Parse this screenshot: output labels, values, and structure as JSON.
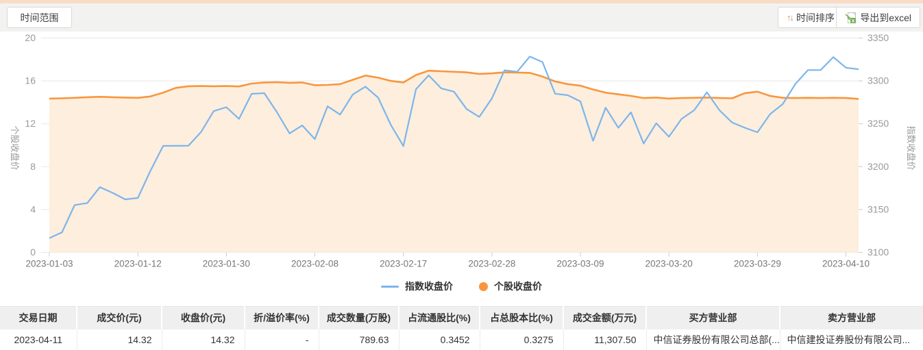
{
  "header": {
    "time_range_label": "时间范围",
    "sort_label": "时间排序",
    "export_label": "导出到excel"
  },
  "chart_data": {
    "type": "line",
    "dates": [
      "2023-01-03",
      "2023-01-04",
      "2023-01-05",
      "2023-01-06",
      "2023-01-09",
      "2023-01-10",
      "2023-01-11",
      "2023-01-12",
      "2023-01-13",
      "2023-01-16",
      "2023-01-17",
      "2023-01-18",
      "2023-01-19",
      "2023-01-20",
      "2023-01-30",
      "2023-01-31",
      "2023-02-01",
      "2023-02-02",
      "2023-02-03",
      "2023-02-06",
      "2023-02-07",
      "2023-02-08",
      "2023-02-09",
      "2023-02-10",
      "2023-02-13",
      "2023-02-14",
      "2023-02-15",
      "2023-02-16",
      "2023-02-17",
      "2023-02-20",
      "2023-02-21",
      "2023-02-22",
      "2023-02-23",
      "2023-02-24",
      "2023-02-27",
      "2023-02-28",
      "2023-03-01",
      "2023-03-02",
      "2023-03-03",
      "2023-03-06",
      "2023-03-07",
      "2023-03-08",
      "2023-03-09",
      "2023-03-10",
      "2023-03-13",
      "2023-03-14",
      "2023-03-15",
      "2023-03-16",
      "2023-03-17",
      "2023-03-20",
      "2023-03-21",
      "2023-03-22",
      "2023-03-23",
      "2023-03-24",
      "2023-03-27",
      "2023-03-28",
      "2023-03-29",
      "2023-03-30",
      "2023-03-31",
      "2023-04-03",
      "2023-04-04",
      "2023-04-06",
      "2023-04-07",
      "2023-04-10",
      "2023-04-11"
    ],
    "x_tick_labels": [
      "2023-01-03",
      "2023-01-12",
      "2023-01-30",
      "2023-02-08",
      "2023-02-17",
      "2023-02-28",
      "2023-03-09",
      "2023-03-20",
      "2023-03-29",
      "2023-04-10"
    ],
    "x_tick_indexes": [
      0,
      7,
      14,
      21,
      28,
      35,
      42,
      49,
      56,
      63
    ],
    "series": [
      {
        "name": "指数收盘价",
        "axis": "right",
        "color": "#7cb5ec",
        "values": [
          3116.5,
          3123.5,
          3155.2,
          3157.6,
          3176.1,
          3169.5,
          3161.8,
          3163.5,
          3195.3,
          3224.2,
          3224.3,
          3224.4,
          3240.3,
          3264.8,
          3269.3,
          3255.7,
          3284.9,
          3285.7,
          3263.4,
          3238.7,
          3248.1,
          3232.1,
          3270.4,
          3260.7,
          3284.2,
          3293.3,
          3280.5,
          3249.0,
          3224.0,
          3290.3,
          3306.5,
          3291.2,
          3287.5,
          3267.2,
          3258.0,
          3279.6,
          3312.4,
          3310.7,
          3328.4,
          3322.0,
          3285.1,
          3283.3,
          3276.1,
          3230.1,
          3268.7,
          3245.3,
          3263.3,
          3226.9,
          3250.6,
          3234.9,
          3255.7,
          3265.8,
          3286.7,
          3265.7,
          3251.4,
          3245.4,
          3240.1,
          3261.3,
          3272.9,
          3296.4,
          3312.6,
          3312.6,
          3327.7,
          3315.4,
          3313.6
        ]
      },
      {
        "name": "个股收盘价",
        "axis": "left",
        "color": "#f8963d",
        "fill": "#fdeedd",
        "values": [
          14.35,
          14.38,
          14.42,
          14.48,
          14.52,
          14.48,
          14.45,
          14.42,
          14.55,
          14.9,
          15.35,
          15.5,
          15.52,
          15.5,
          15.52,
          15.48,
          15.75,
          15.85,
          15.88,
          15.82,
          15.85,
          15.6,
          15.62,
          15.7,
          16.1,
          16.5,
          16.3,
          16.0,
          15.85,
          16.55,
          16.95,
          16.9,
          16.85,
          16.8,
          16.65,
          16.7,
          16.8,
          16.78,
          16.75,
          16.4,
          15.95,
          15.7,
          15.55,
          15.2,
          14.9,
          14.75,
          14.6,
          14.4,
          14.45,
          14.35,
          14.4,
          14.42,
          14.45,
          14.4,
          14.38,
          14.85,
          15.0,
          14.6,
          14.42,
          14.4,
          14.42,
          14.4,
          14.42,
          14.4,
          14.32
        ]
      }
    ],
    "left_axis": {
      "title": "个股收盘价",
      "min": 0,
      "max": 20,
      "ticks": [
        20,
        16,
        12,
        8,
        4,
        0
      ]
    },
    "right_axis": {
      "title": "指数收盘价",
      "min": 3100,
      "max": 3350,
      "ticks": [
        3350,
        3300,
        3250,
        3200,
        3150,
        3100
      ]
    },
    "legend": [
      "指数收盘价",
      "个股收盘价"
    ],
    "grid": true,
    "legend_position": "bottom"
  },
  "table": {
    "headers": [
      "交易日期",
      "成交价(元)",
      "收盘价(元)",
      "折/溢价率(%)",
      "成交数量(万股)",
      "占流通股比(%)",
      "占总股本比(%)",
      "成交金额(万元)",
      "买方营业部",
      "卖方营业部"
    ],
    "rows": [
      [
        "2023-04-11",
        "14.32",
        "14.32",
        "-",
        "789.63",
        "0.3452",
        "0.3275",
        "11,307.50",
        "中信证券股份有限公司总部(...",
        "中信建投证券股份有限公司..."
      ]
    ]
  }
}
